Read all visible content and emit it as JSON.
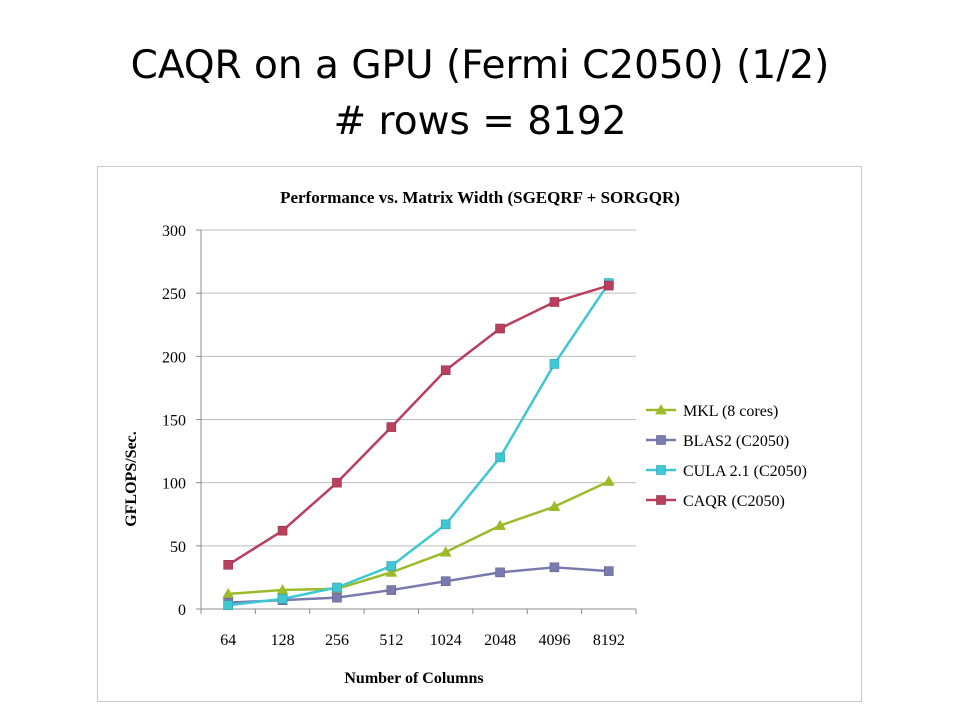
{
  "slide": {
    "title_line1": "CAQR on a GPU (Fermi C2050) (1/2)",
    "title_line2": "# rows = 8192"
  },
  "chart_data": {
    "type": "line",
    "title": "Performance vs. Matrix Width (SGEQRF + SORGQR)",
    "xlabel": "Number of Columns",
    "ylabel": "GFLOPS/Sec.",
    "categories": [
      "64",
      "128",
      "256",
      "512",
      "1024",
      "2048",
      "4096",
      "8192"
    ],
    "ylim": [
      0,
      300
    ],
    "yticks": [
      0,
      50,
      100,
      150,
      200,
      250,
      300
    ],
    "grid": true,
    "legend_position": "right",
    "series": [
      {
        "name": "MKL (8 cores)",
        "color": "#9bbb2a",
        "marker": "triangle",
        "values": [
          12,
          15,
          16,
          29,
          45,
          66,
          81,
          101
        ]
      },
      {
        "name": "BLAS2 (C2050)",
        "color": "#7a7aae",
        "marker": "square",
        "values": [
          5,
          7,
          9,
          15,
          22,
          29,
          33,
          30
        ]
      },
      {
        "name": "CULA 2.1 (C2050)",
        "color": "#3fc7d3",
        "marker": "square",
        "values": [
          3,
          8,
          17,
          34,
          67,
          120,
          194,
          258
        ]
      },
      {
        "name": "CAQR (C2050)",
        "color": "#b9405d",
        "marker": "square",
        "values": [
          35,
          62,
          100,
          144,
          189,
          222,
          243,
          256
        ]
      }
    ]
  }
}
